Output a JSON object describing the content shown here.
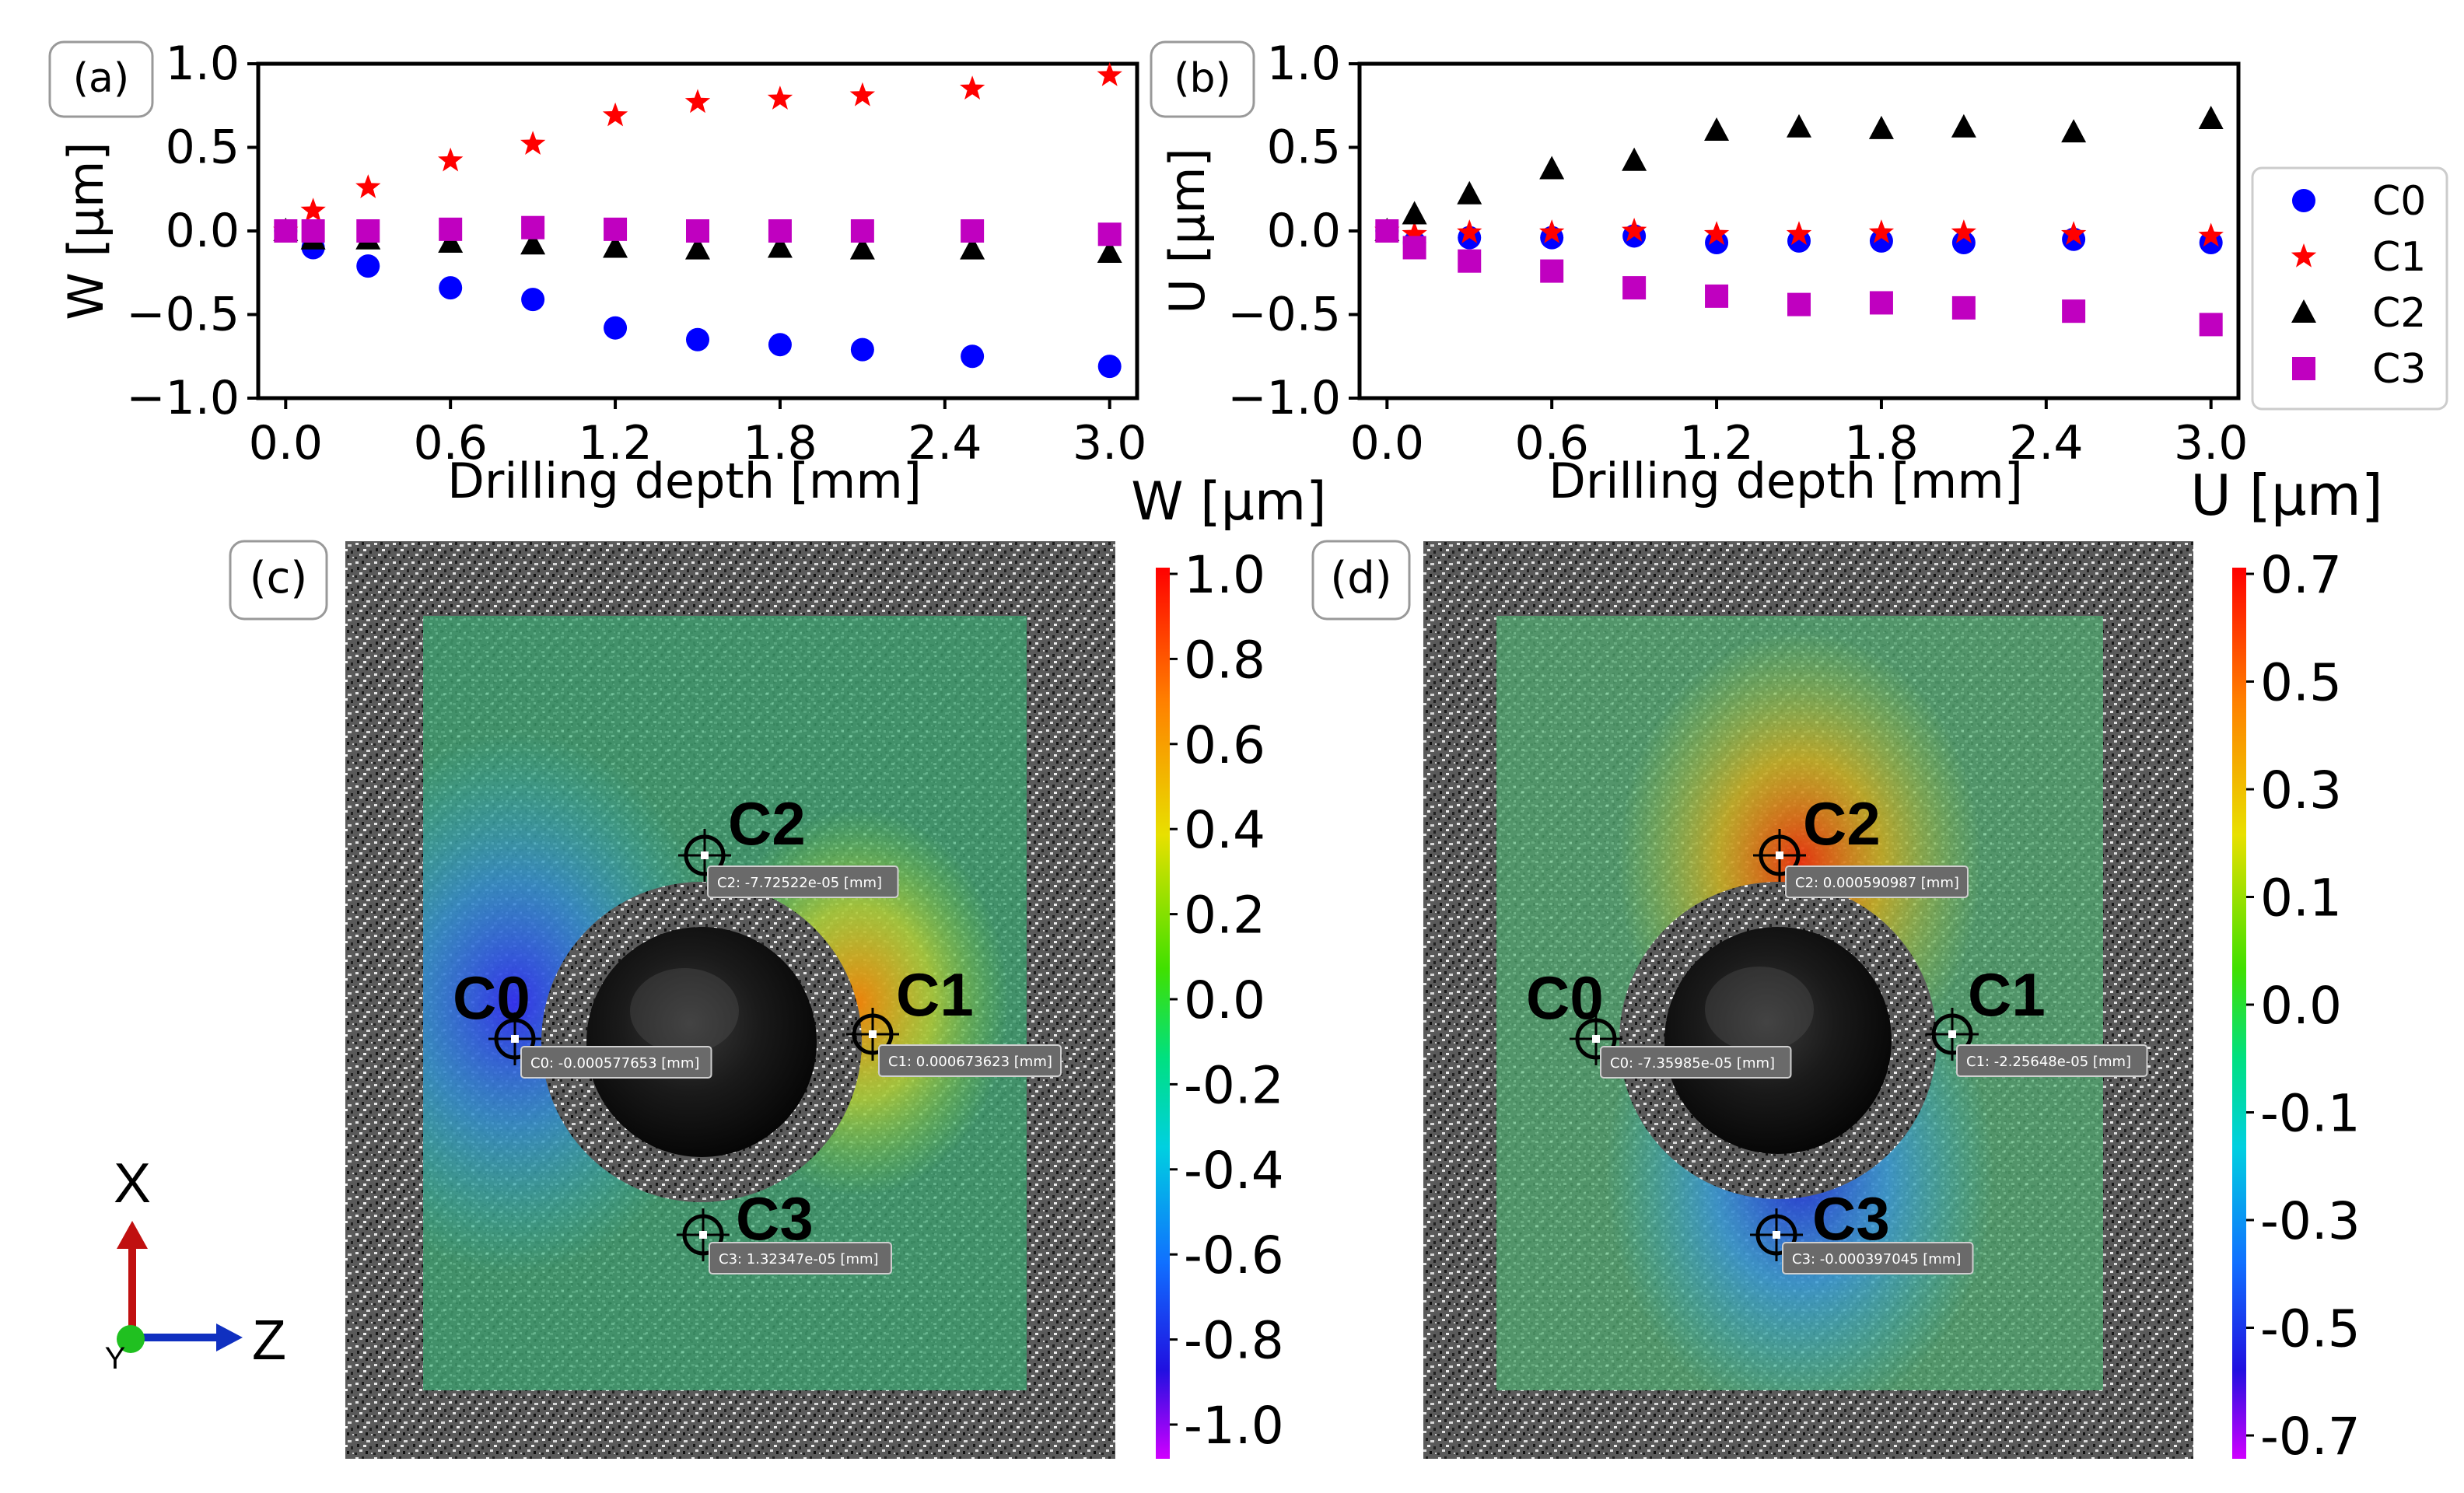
{
  "chart_data": [
    {
      "type": "scatter",
      "panel_label": "(a)",
      "xlabel": "Drilling depth [mm]",
      "ylabel": "W [μm]",
      "xlim": [
        -0.1,
        3.1
      ],
      "ylim": [
        -1.0,
        1.0
      ],
      "xticks": [
        "0.0",
        "0.6",
        "1.2",
        "1.8",
        "2.4",
        "3.0"
      ],
      "yticks": [
        "−1.0",
        "−0.5",
        "0.0",
        "0.5",
        "1.0"
      ],
      "x": [
        0.0,
        0.1,
        0.3,
        0.6,
        0.9,
        1.2,
        1.5,
        1.8,
        2.1,
        2.5,
        3.0
      ],
      "series": [
        {
          "name": "C0",
          "marker": "circle",
          "color": "#0000ff",
          "values": [
            0.0,
            -0.1,
            -0.21,
            -0.34,
            -0.41,
            -0.58,
            -0.65,
            -0.68,
            -0.71,
            -0.75,
            -0.81
          ]
        },
        {
          "name": "C1",
          "marker": "star",
          "color": "#ff0000",
          "values": [
            0.0,
            0.12,
            0.26,
            0.42,
            0.52,
            0.69,
            0.77,
            0.79,
            0.81,
            0.85,
            0.93
          ]
        },
        {
          "name": "C2",
          "marker": "triangle",
          "color": "#000000",
          "values": [
            0.0,
            -0.05,
            -0.05,
            -0.07,
            -0.08,
            -0.1,
            -0.11,
            -0.1,
            -0.11,
            -0.11,
            -0.13
          ]
        },
        {
          "name": "C3",
          "marker": "square",
          "color": "#c000c0",
          "values": [
            0.0,
            0.0,
            0.0,
            0.01,
            0.02,
            0.01,
            0.0,
            0.0,
            0.0,
            0.0,
            -0.02
          ]
        }
      ]
    },
    {
      "type": "scatter",
      "panel_label": "(b)",
      "xlabel": "Drilling depth [mm]",
      "ylabel": "U [μm]",
      "xlim": [
        -0.1,
        3.1
      ],
      "ylim": [
        -1.0,
        1.0
      ],
      "xticks": [
        "0.0",
        "0.6",
        "1.2",
        "1.8",
        "2.4",
        "3.0"
      ],
      "yticks": [
        "−1.0",
        "−0.5",
        "0.0",
        "0.5",
        "1.0"
      ],
      "x": [
        0.0,
        0.1,
        0.3,
        0.6,
        0.9,
        1.2,
        1.5,
        1.8,
        2.1,
        2.5,
        3.0
      ],
      "series": [
        {
          "name": "C0",
          "marker": "circle",
          "color": "#0000ff",
          "values": [
            0.0,
            -0.07,
            -0.04,
            -0.04,
            -0.03,
            -0.07,
            -0.06,
            -0.06,
            -0.07,
            -0.05,
            -0.07
          ]
        },
        {
          "name": "C1",
          "marker": "star",
          "color": "#ff0000",
          "values": [
            0.0,
            -0.02,
            -0.01,
            -0.01,
            0.0,
            -0.02,
            -0.02,
            -0.01,
            -0.01,
            -0.02,
            -0.03
          ]
        },
        {
          "name": "C2",
          "marker": "triangle",
          "color": "#000000",
          "values": [
            0.0,
            0.1,
            0.22,
            0.37,
            0.42,
            0.6,
            0.62,
            0.61,
            0.62,
            0.59,
            0.67
          ]
        },
        {
          "name": "C3",
          "marker": "square",
          "color": "#c000c0",
          "values": [
            0.0,
            -0.1,
            -0.18,
            -0.24,
            -0.34,
            -0.39,
            -0.44,
            -0.43,
            -0.46,
            -0.48,
            -0.56
          ]
        }
      ],
      "legend": {
        "position": "right",
        "entries": [
          "C0",
          "C1",
          "C2",
          "C3"
        ]
      }
    },
    {
      "type": "heatmap",
      "panel_label": "(c)",
      "colorbar_title": "W [μm]",
      "colorbar_ticks": [
        "1.0",
        "0.8",
        "0.6",
        "0.4",
        "0.2",
        "0.0",
        "-0.2",
        "-0.4",
        "-0.6",
        "-0.8",
        "-1.0"
      ],
      "points": [
        {
          "label": "C2",
          "tag": "C2: -7.72522e-05 [mm]"
        },
        {
          "label": "C0",
          "tag": "C0: -0.000577653 [mm]"
        },
        {
          "label": "C1",
          "tag": "C1: 0.000673623 [mm]"
        },
        {
          "label": "C3",
          "tag": "C3: 1.32347e-05 [mm]"
        }
      ]
    },
    {
      "type": "heatmap",
      "panel_label": "(d)",
      "colorbar_title": "U [μm]",
      "colorbar_ticks": [
        "0.7",
        "0.5",
        "0.3",
        "0.1",
        "0.0",
        "-0.1",
        "-0.3",
        "-0.5",
        "-0.7"
      ],
      "points": [
        {
          "label": "C2",
          "tag": "C2: 0.000590987 [mm]"
        },
        {
          "label": "C0",
          "tag": "C0: -7.35985e-05 [mm]"
        },
        {
          "label": "C1",
          "tag": "C1: -2.25648e-05 [mm]"
        },
        {
          "label": "C3",
          "tag": "C3: -0.000397045 [mm]"
        }
      ]
    }
  ],
  "axes_triad": {
    "x_label": "X",
    "z_label": "Z",
    "y_label": "Y"
  },
  "colors": {
    "c0": "#0000ff",
    "c1": "#ff0000",
    "c2": "#000000",
    "c3": "#c000c0"
  }
}
